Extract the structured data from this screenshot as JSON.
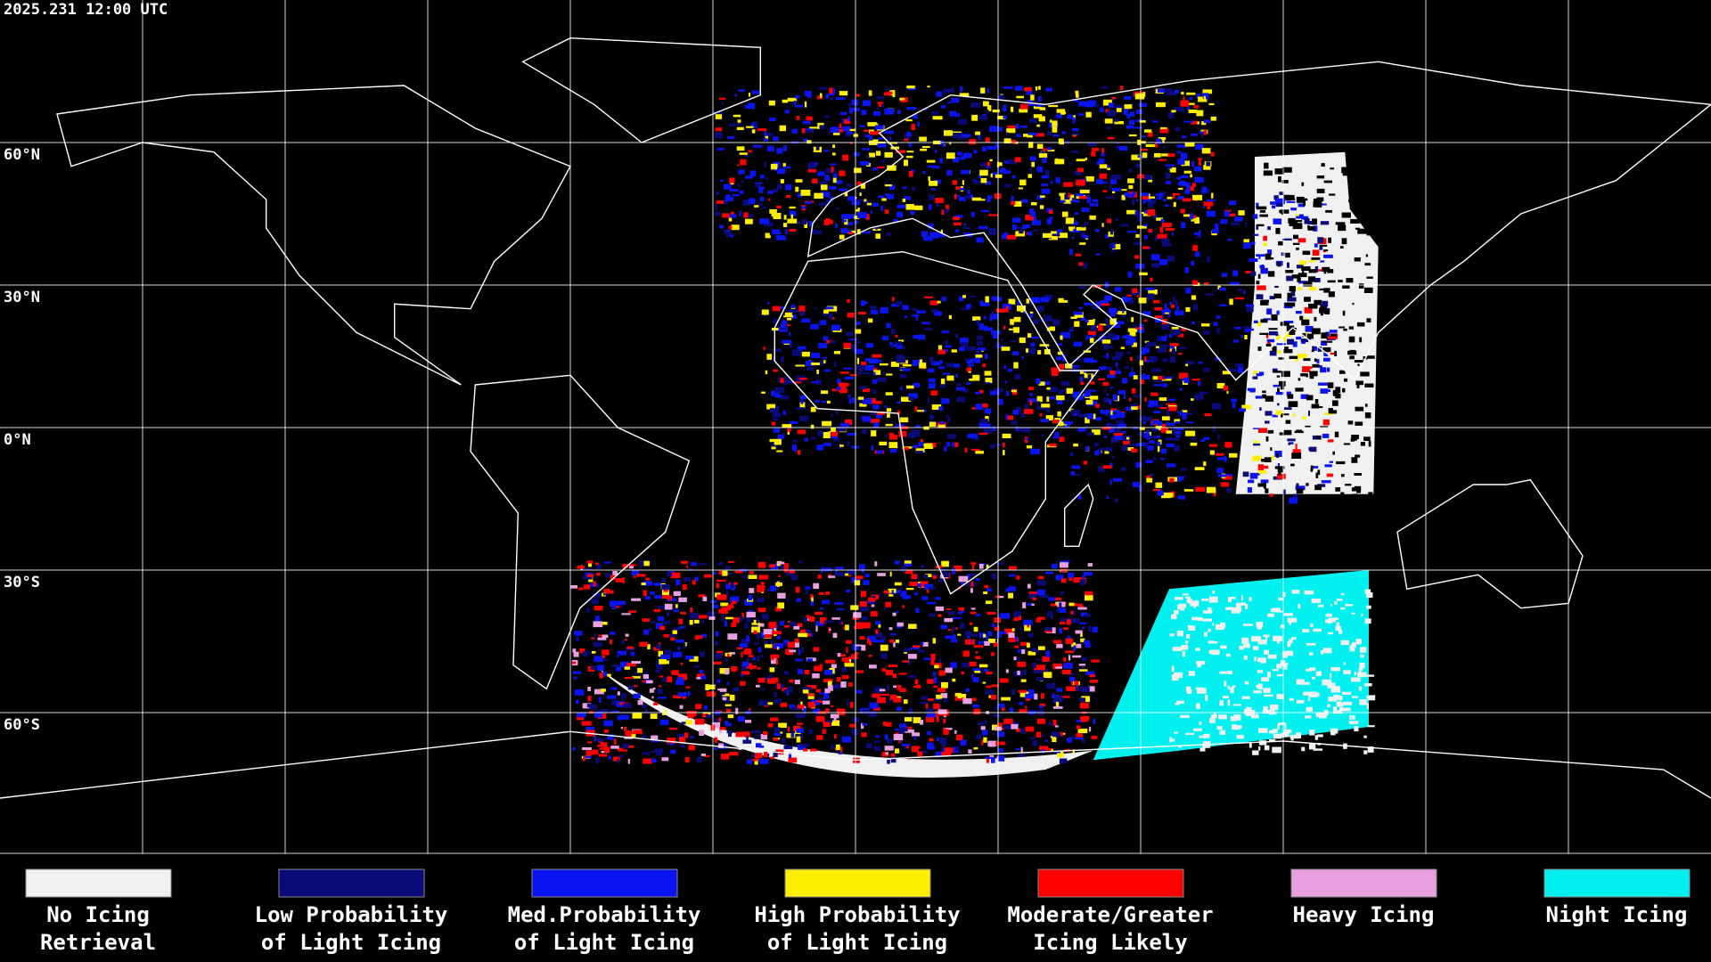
{
  "header": {
    "timestamp": "2025.231 12:00 UTC"
  },
  "latitude_labels": [
    "60°N",
    "30°N",
    "0°N",
    "30°S",
    "60°S"
  ],
  "legend": [
    {
      "lines": [
        "No Icing",
        "Retrieval"
      ],
      "color": "#f0f0f0"
    },
    {
      "lines": [
        "Low Probability",
        "of Light Icing"
      ],
      "color": "#0a0a78"
    },
    {
      "lines": [
        "Med.Probability",
        "of Light Icing"
      ],
      "color": "#0a14f0"
    },
    {
      "lines": [
        "High Probability",
        "of Light Icing"
      ],
      "color": "#ffee00"
    },
    {
      "lines": [
        "Moderate/Greater",
        "Icing Likely"
      ],
      "color": "#ff0000"
    },
    {
      "lines": [
        "Heavy Icing"
      ],
      "color": "#e8a0e0"
    },
    {
      "lines": [
        "Night Icing"
      ],
      "color": "#00f0f0"
    }
  ]
}
